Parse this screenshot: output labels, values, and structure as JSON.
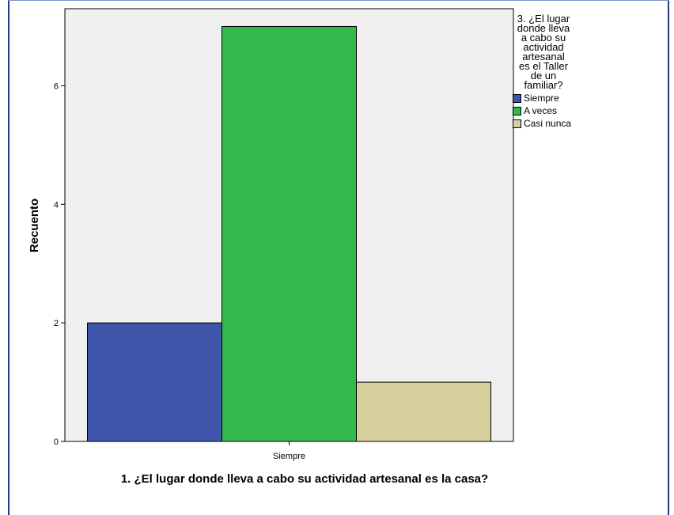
{
  "chart_data": {
    "type": "bar",
    "categories": [
      "Siempre"
    ],
    "series": [
      {
        "name": "Siempre",
        "values": [
          2
        ],
        "color": "#3c55a8"
      },
      {
        "name": "A veces",
        "values": [
          7
        ],
        "color": "#34b84b"
      },
      {
        "name": "Casi nunca",
        "values": [
          1
        ],
        "color": "#d5cf9c"
      }
    ],
    "xlabel": "1. ¿El lugar donde lleva a cabo su actividad artesanal es la casa?",
    "ylabel": "Recuento",
    "ylim": [
      0,
      7.3
    ],
    "yticks": [
      0,
      2,
      4,
      6
    ],
    "legend_title": "3. ¿El lugar donde lleva a cabo su actividad artesanal es el Taller de un familiar?",
    "legend_position": "right",
    "grid": false,
    "plot_background": "#f0f0f0"
  }
}
